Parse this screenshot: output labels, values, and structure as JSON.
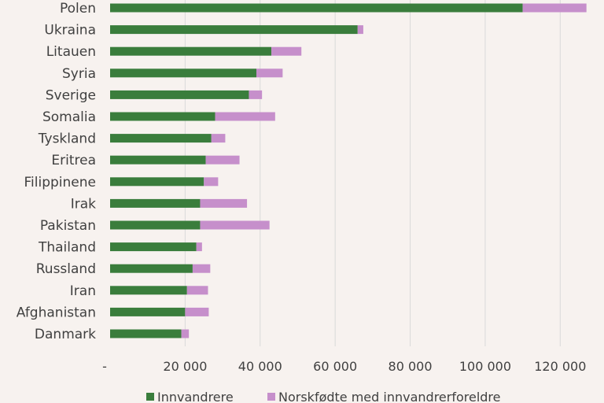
{
  "chart_data": {
    "type": "bar",
    "orientation": "horizontal",
    "stacked": true,
    "categories": [
      "Polen",
      "Ukraina",
      "Litauen",
      "Syria",
      "Sverige",
      "Somalia",
      "Tyskland",
      "Eritrea",
      "Filippinene",
      "Irak",
      "Pakistan",
      "Thailand",
      "Russland",
      "Iran",
      "Afghanistan",
      "Danmark"
    ],
    "series": [
      {
        "name": "Innvandrere",
        "color": "#3a7d3c",
        "values": [
          110000,
          66000,
          43000,
          39000,
          37000,
          28000,
          27000,
          25500,
          25000,
          24000,
          24000,
          23000,
          22000,
          20500,
          20000,
          19000
        ]
      },
      {
        "name": "Norskfødte med innvandrerforeldre",
        "color": "#c68fcb",
        "values": [
          17000,
          1500,
          8000,
          7000,
          3500,
          16000,
          3700,
          9000,
          3800,
          12500,
          18500,
          1500,
          4700,
          5600,
          6300,
          2000
        ]
      }
    ],
    "xlim": [
      0,
      130000
    ],
    "xticks": [
      0,
      20000,
      40000,
      60000,
      80000,
      100000,
      120000
    ],
    "xtick_labels": [
      "-",
      "20 000",
      "40 000",
      "60 000",
      "80 000",
      "100 000",
      "120 000"
    ],
    "grid": "vertical",
    "legend_position": "bottom",
    "title": "",
    "xlabel": "",
    "ylabel": ""
  },
  "colors": {
    "background": "#f7f2ef",
    "grid": "#d9d9d9",
    "text": "#404040"
  }
}
